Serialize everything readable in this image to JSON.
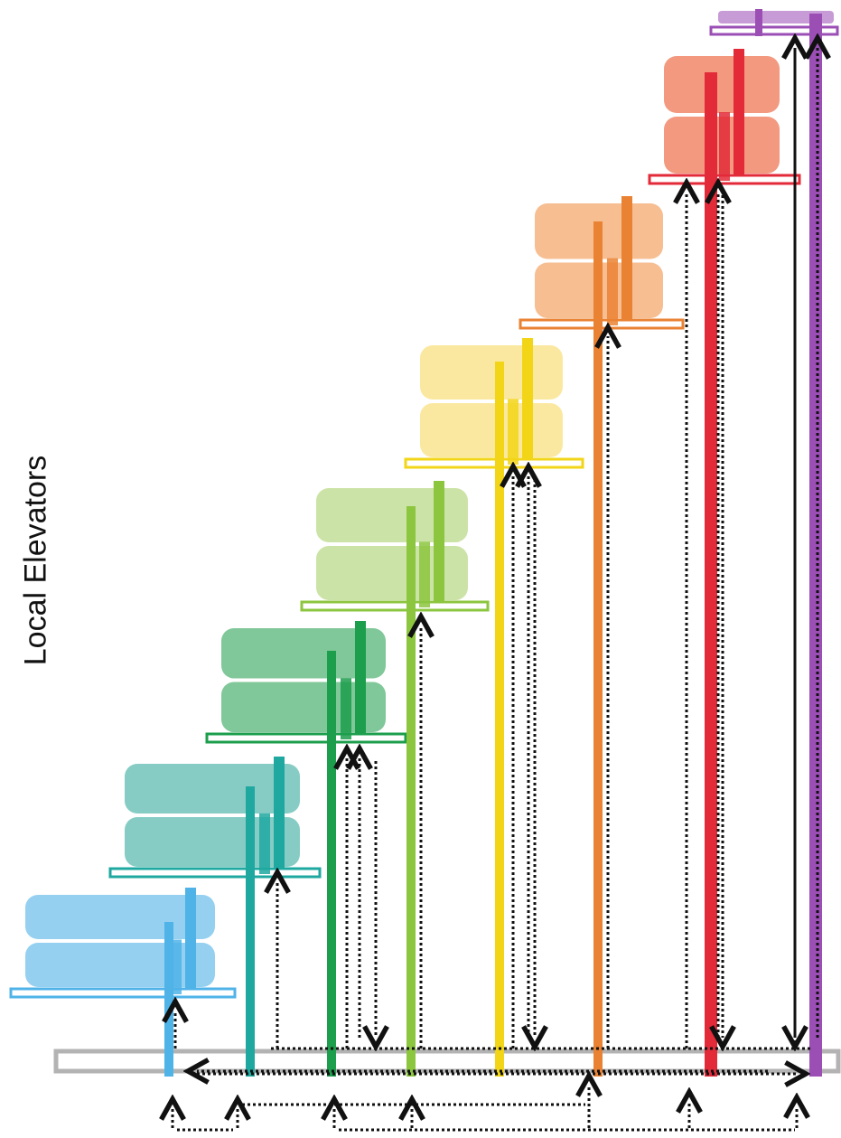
{
  "diagram": {
    "title": "Local Elevators",
    "zones": [
      {
        "id": "zone-1",
        "color": "#4fb3e8",
        "block": "#8fcdf0"
      },
      {
        "id": "zone-2",
        "color": "#1fa8a0",
        "block": "#7fc9c2"
      },
      {
        "id": "zone-3",
        "color": "#1c9e4c",
        "block": "#79c493"
      },
      {
        "id": "zone-4",
        "color": "#8cc63f",
        "block": "#c9e2a2"
      },
      {
        "id": "zone-5",
        "color": "#f2d517",
        "block": "#fbe79b"
      },
      {
        "id": "zone-6",
        "color": "#ea8233",
        "block": "#f6bb8b"
      },
      {
        "id": "zone-7",
        "color": "#e32a38",
        "block": "#f19379"
      },
      {
        "id": "zone-8",
        "color": "#9b4fb5",
        "block": "#c79bd5"
      }
    ],
    "lobby_color": "#b3b3b3",
    "arrow_color": "#111111"
  }
}
